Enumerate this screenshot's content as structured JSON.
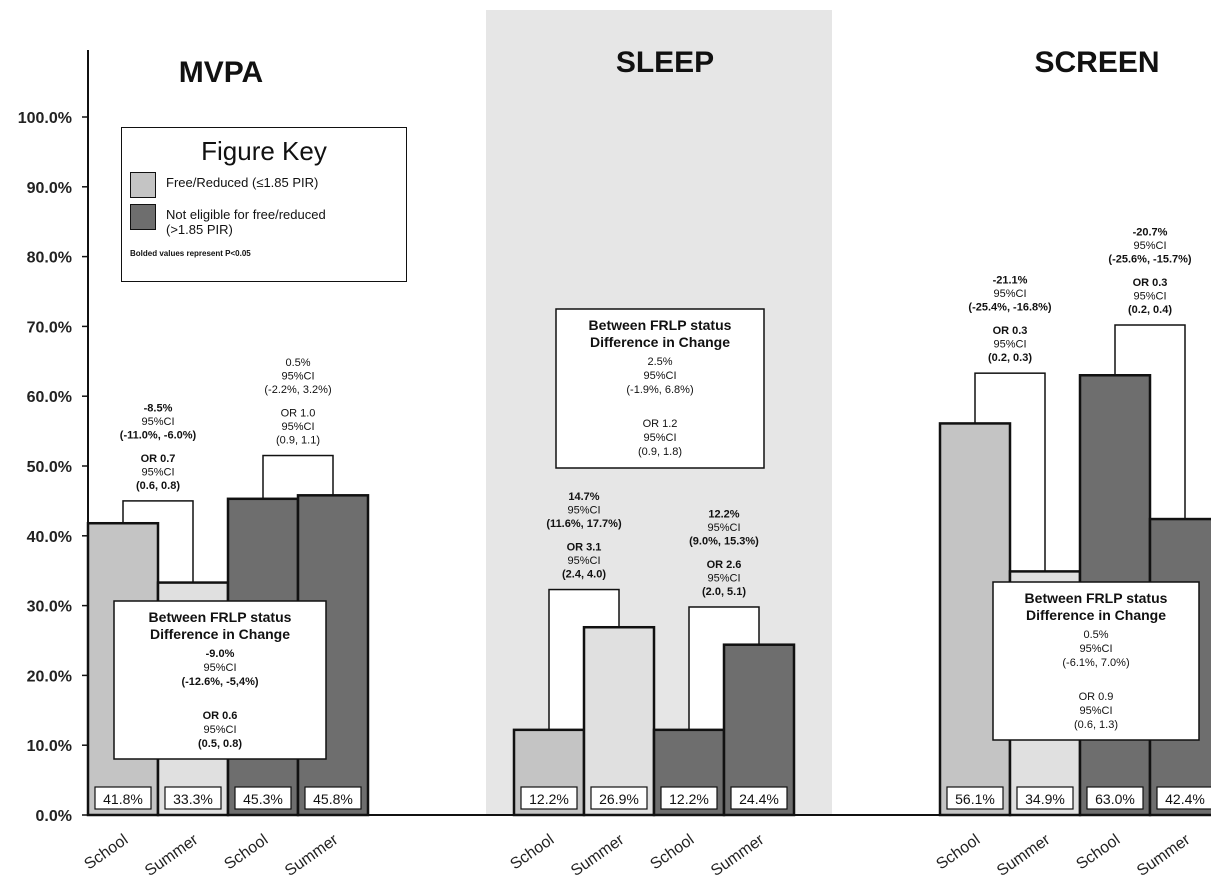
{
  "colors": {
    "free_reduced": "#c4c4c4",
    "free_reduced_summer": "#e0e0e0",
    "not_eligible": "#6e6e6e",
    "highlight_panel": "#e6e6e6",
    "outline": "#111111"
  },
  "figure_key": {
    "title": "Figure Key",
    "items": [
      {
        "label": "Free/Reduced  (≤1.85 PIR)",
        "color": "#c4c4c4"
      },
      {
        "label": "Not eligible for free/reduced (>1.85 PIR)",
        "color": "#6e6e6e"
      }
    ],
    "note": "Bolded values represent P<0.05"
  },
  "chart_data": {
    "type": "bar",
    "ylim": [
      0,
      100
    ],
    "yticks": [
      "0.0%",
      "10.0%",
      "20.0%",
      "30.0%",
      "40.0%",
      "50.0%",
      "60.0%",
      "70.0%",
      "80.0%",
      "90.0%",
      "100.0%"
    ],
    "panels": [
      {
        "title": "MVPA",
        "categories": [
          "School",
          "Summer",
          "School",
          "Summer"
        ],
        "values": [
          41.8,
          33.3,
          45.3,
          45.8
        ],
        "value_labels": [
          "41.8%",
          "33.3%",
          "45.3%",
          "45.8%"
        ],
        "groups": [
          "Free/Reduced",
          "Free/Reduced",
          "Not eligible",
          "Not eligible"
        ],
        "changes": [
          {
            "pct": "-8.5%",
            "ci_label": "95%CI",
            "pct_ci": "(-11.0%, -6.0%)",
            "or": "OR 0.7",
            "or_ci_label": "95%CI",
            "or_ci": "(0.6, 0.8)",
            "bold": true
          },
          {
            "pct": "0.5%",
            "ci_label": "95%CI",
            "pct_ci": "(-2.2%, 3.2%)",
            "or": "OR 1.0",
            "or_ci_label": "95%CI",
            "or_ci": "(0.9, 1.1)",
            "bold": false
          }
        ],
        "between": {
          "title1": "Between FRLP status",
          "title2": "Difference in Change",
          "pct": "-9.0%",
          "ci_label": "95%CI",
          "pct_ci": "(-12.6%, -5,4%)",
          "or": "OR 0.6",
          "or_ci_label": "95%CI",
          "or_ci": "(0.5, 0.8)",
          "bold": true
        }
      },
      {
        "title": "SLEEP",
        "categories": [
          "School",
          "Summer",
          "School",
          "Summer"
        ],
        "values": [
          12.2,
          26.9,
          12.2,
          24.4
        ],
        "value_labels": [
          "12.2%",
          "26.9%",
          "12.2%",
          "24.4%"
        ],
        "groups": [
          "Free/Reduced",
          "Free/Reduced",
          "Not eligible",
          "Not eligible"
        ],
        "changes": [
          {
            "pct": "14.7%",
            "ci_label": "95%CI",
            "pct_ci": "(11.6%, 17.7%)",
            "or": "OR 3.1",
            "or_ci_label": "95%CI",
            "or_ci": "(2.4, 4.0)",
            "bold": true
          },
          {
            "pct": "12.2%",
            "ci_label": "95%CI",
            "pct_ci": "(9.0%, 15.3%)",
            "or": "OR 2.6",
            "or_ci_label": "95%CI",
            "or_ci": "(2.0, 5.1)",
            "bold": true
          }
        ],
        "between": {
          "title1": "Between FRLP status",
          "title2": "Difference in Change",
          "pct": "2.5%",
          "ci_label": "95%CI",
          "pct_ci": "(-1.9%, 6.8%)",
          "or": "OR 1.2",
          "or_ci_label": "95%CI",
          "or_ci": "(0.9, 1.8)",
          "bold": false
        }
      },
      {
        "title": "SCREEN",
        "categories": [
          "School",
          "Summer",
          "School",
          "Summer"
        ],
        "values": [
          56.1,
          34.9,
          63.0,
          42.4
        ],
        "value_labels": [
          "56.1%",
          "34.9%",
          "63.0%",
          "42.4%"
        ],
        "groups": [
          "Free/Reduced",
          "Free/Reduced",
          "Not eligible",
          "Not eligible"
        ],
        "changes": [
          {
            "pct": "-21.1%",
            "ci_label": "95%CI",
            "pct_ci": "(-25.4%, -16.8%)",
            "or": "OR 0.3",
            "or_ci_label": "95%CI",
            "or_ci": "(0.2, 0.3)",
            "bold": true
          },
          {
            "pct": "-20.7%",
            "ci_label": "95%CI",
            "pct_ci": "(-25.6%, -15.7%)",
            "or": "OR 0.3",
            "or_ci_label": "95%CI",
            "or_ci": "(0.2, 0.4)",
            "bold": true
          }
        ],
        "between": {
          "title1": "Between FRLP status",
          "title2": "Difference in Change",
          "pct": "0.5%",
          "ci_label": "95%CI",
          "pct_ci": "(-6.1%, 7.0%)",
          "or": "OR 0.9",
          "or_ci_label": "95%CI",
          "or_ci": "(0.6, 1.3)",
          "bold": false
        }
      }
    ]
  }
}
